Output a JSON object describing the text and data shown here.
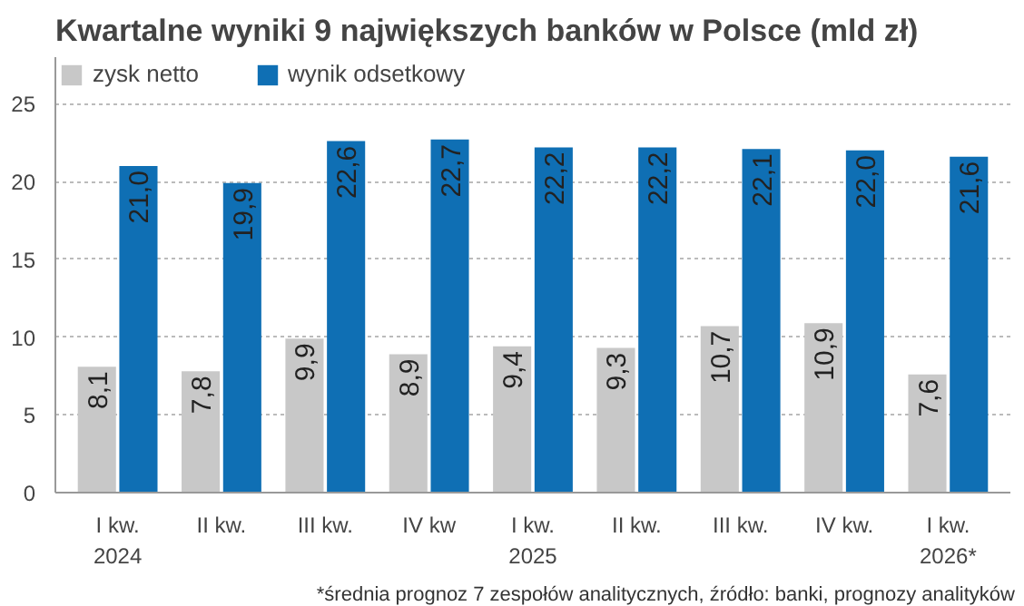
{
  "chart_data": {
    "type": "bar",
    "title": "Kwartalne wyniki 9 największych banków w Polsce (mld zł)",
    "categories": [
      "I kw.\n2024",
      "II kw.",
      "III kw.",
      "IV kw",
      "I kw.\n2025",
      "II kw.",
      "III kw.",
      "IV kw.",
      "I kw.\n2026*"
    ],
    "series": [
      {
        "name": "zysk netto",
        "color": "#c8c8c8",
        "values": [
          8.1,
          7.8,
          9.9,
          8.9,
          9.4,
          9.3,
          10.7,
          10.9,
          7.6
        ],
        "value_labels": [
          "8,1",
          "7,8",
          "9,9",
          "8,9",
          "9,4",
          "9,3",
          "10,7",
          "10,9",
          "7,6"
        ]
      },
      {
        "name": "wynik odsetkowy",
        "color": "#0f6fb4",
        "values": [
          21.0,
          19.9,
          22.6,
          22.7,
          22.2,
          22.2,
          22.1,
          22.0,
          21.6
        ],
        "value_labels": [
          "21,0",
          "19,9",
          "22,6",
          "22,7",
          "22,2",
          "22,2",
          "22,1",
          "22,0",
          "21,6"
        ]
      }
    ],
    "ylim": [
      0,
      28
    ],
    "yticks": [
      0,
      5,
      10,
      15,
      20,
      25
    ],
    "grid": "y",
    "legend": "top left",
    "annotations": [
      "*średnia prognoz 7 zespołów analitycznych, źródło: banki, prognozy analityków"
    ]
  }
}
